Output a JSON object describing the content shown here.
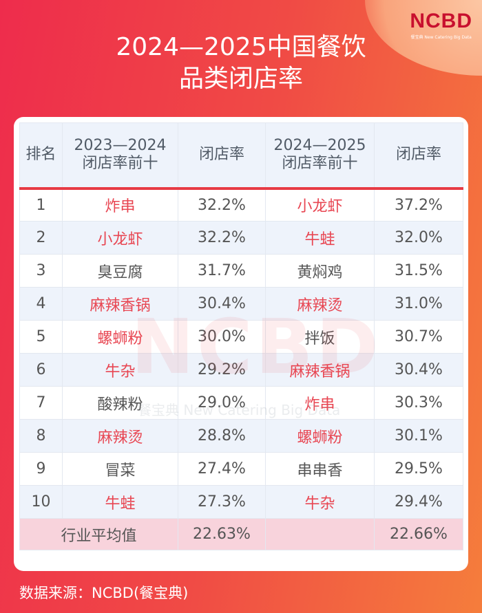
{
  "logo": {
    "text": "NCBD",
    "subtitle": "餐宝典 New Catering Big Data"
  },
  "title_line1": "2024—2025中国餐饮",
  "title_line2": "品类闭店率",
  "headers": [
    "排名",
    "2023—2024\n闭店率前十",
    "闭店率",
    "2024—2025\n闭店率前十",
    "闭店率"
  ],
  "headers_split": {
    "h1a": "2023—2024",
    "h1b": "闭店率前十",
    "h3a": "2024—2025",
    "h3b": "闭店率前十"
  },
  "rows": [
    {
      "rank": "1",
      "a": "炸串",
      "a_red": true,
      "ar": "32.2%",
      "b": "小龙虾",
      "b_red": true,
      "br": "37.2%"
    },
    {
      "rank": "2",
      "a": "小龙虾",
      "a_red": true,
      "ar": "32.2%",
      "b": "牛蛙",
      "b_red": true,
      "br": "32.0%"
    },
    {
      "rank": "3",
      "a": "臭豆腐",
      "a_red": false,
      "ar": "31.7%",
      "b": "黄焖鸡",
      "b_red": false,
      "br": "31.5%"
    },
    {
      "rank": "4",
      "a": "麻辣香锅",
      "a_red": true,
      "ar": "30.4%",
      "b": "麻辣烫",
      "b_red": true,
      "br": "31.0%"
    },
    {
      "rank": "5",
      "a": "螺蛳粉",
      "a_red": true,
      "ar": "30.0%",
      "b": "拌饭",
      "b_red": false,
      "br": "30.7%"
    },
    {
      "rank": "6",
      "a": "牛杂",
      "a_red": true,
      "ar": "29.2%",
      "b": "麻辣香锅",
      "b_red": true,
      "br": "30.4%"
    },
    {
      "rank": "7",
      "a": "酸辣粉",
      "a_red": false,
      "ar": "29.0%",
      "b": "炸串",
      "b_red": true,
      "br": "30.3%"
    },
    {
      "rank": "8",
      "a": "麻辣烫",
      "a_red": true,
      "ar": "28.8%",
      "b": "螺蛳粉",
      "b_red": true,
      "br": "30.1%"
    },
    {
      "rank": "9",
      "a": "冒菜",
      "a_red": false,
      "ar": "27.4%",
      "b": "串串香",
      "b_red": false,
      "br": "29.5%"
    },
    {
      "rank": "10",
      "a": "牛蛙",
      "a_red": true,
      "ar": "27.3%",
      "b": "牛杂",
      "b_red": true,
      "br": "29.4%"
    }
  ],
  "average": {
    "label": "行业平均值",
    "a": "22.63%",
    "b": "22.66%"
  },
  "watermark": {
    "text": "NCBD",
    "sub": "餐宝典 New Catering Big Data"
  },
  "source": "数据来源：NCBD(餐宝典)",
  "colors": {
    "accent_red": "#e84652",
    "header_bg": "#eef3fb",
    "avg_bg": "#f8d3dc"
  }
}
